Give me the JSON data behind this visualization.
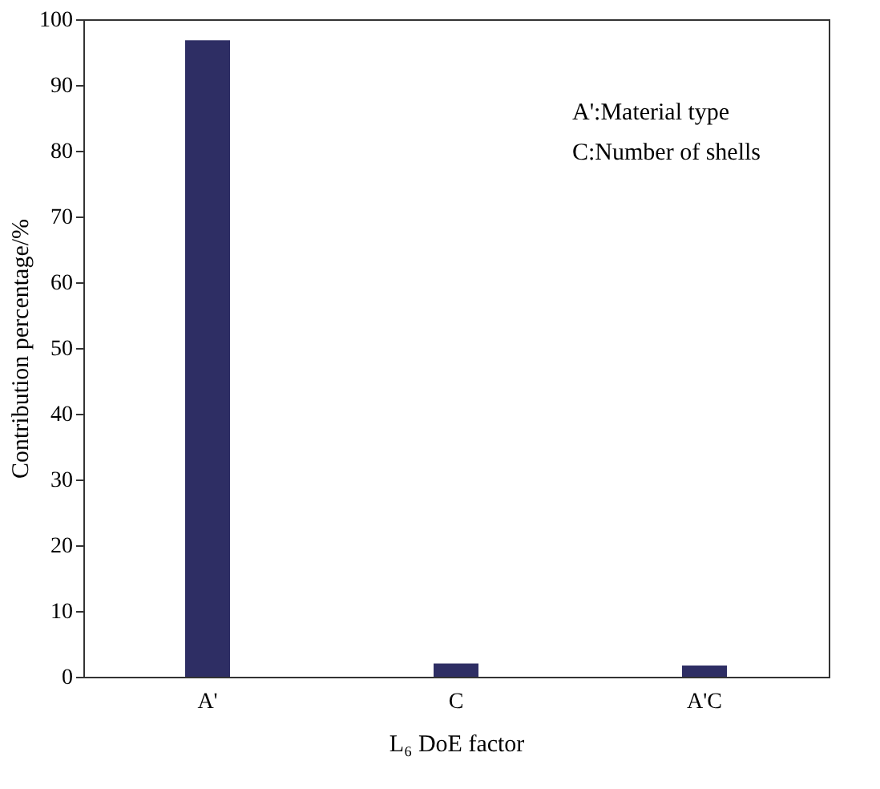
{
  "chart_data": {
    "type": "bar",
    "xlabel": "L₆ DoE factor",
    "ylabel": "Contribution percentage/%",
    "categories": [
      "A'",
      "C",
      "A'C"
    ],
    "series": [
      {
        "color": "#2e2e64",
        "values": [
          96.8,
          2.0,
          1.7
        ]
      }
    ],
    "ylim": [
      0,
      100
    ],
    "yticks": [
      0,
      10,
      20,
      30,
      40,
      50,
      60,
      70,
      80,
      90,
      100
    ],
    "grid": false,
    "annotations": [
      "A':Material type",
      "C:Number of shells"
    ]
  }
}
